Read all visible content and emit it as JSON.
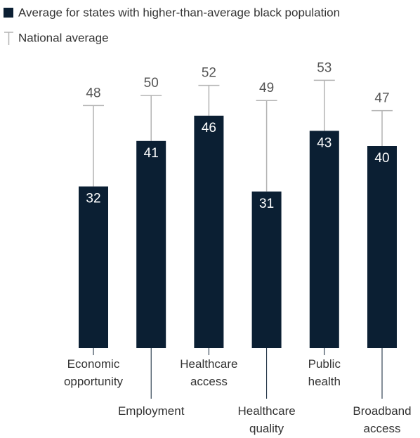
{
  "chart_data": {
    "type": "bar",
    "categories": [
      [
        "Economic",
        "opportunity"
      ],
      [
        "Employment"
      ],
      [
        "Healthcare",
        "access"
      ],
      [
        "Healthcare",
        "quality"
      ],
      [
        "Public",
        "health"
      ],
      [
        "Broadband",
        "access"
      ]
    ],
    "series": [
      {
        "name": "Average for states with higher-than-average black population",
        "color": "#0b1f33",
        "values": [
          32,
          41,
          46,
          31,
          43,
          40
        ]
      },
      {
        "name": "National average",
        "color": "#b3b3b3",
        "values": [
          48,
          50,
          52,
          49,
          53,
          47
        ]
      }
    ]
  }
}
